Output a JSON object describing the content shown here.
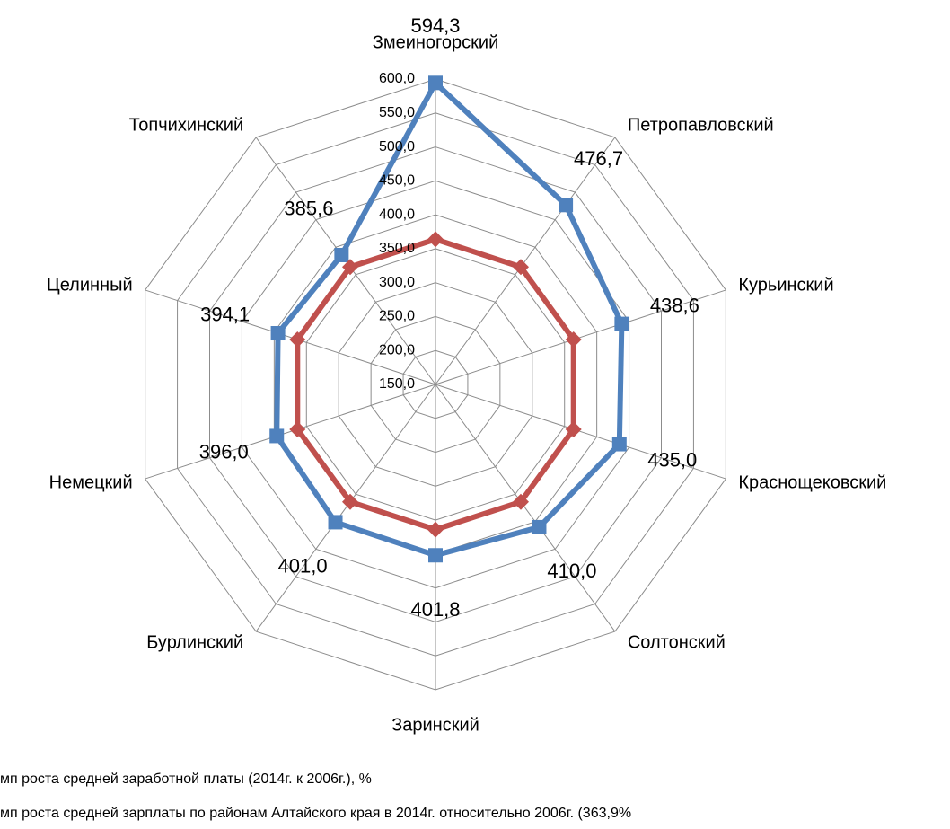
{
  "chart_data": {
    "type": "radar",
    "categories": [
      "Змеиногорский",
      "Петропавловский",
      "Курьинский",
      "Краснощековский",
      "Солтонский",
      "Заринский",
      "Бурлинский",
      "Немецкий",
      "Целинный",
      "Топчихинский"
    ],
    "series": [
      {
        "name": "мп роста средней заработной платы (2014г. к 2006г.), %",
        "color": "#4f81bd",
        "marker": "square",
        "values": [
          594.3,
          476.7,
          438.6,
          435.0,
          410.0,
          401.8,
          401.0,
          396.0,
          394.1,
          385.6
        ],
        "value_labels": [
          "594,3",
          "476,7",
          "438,6",
          "435,0",
          "410,0",
          "401,8",
          "401,0",
          "396,0",
          "394,1",
          "385,6"
        ]
      },
      {
        "name": "мп роста средней зарплаты по районам Алтайского края в 2014г. относительно 2006г. (363,9%",
        "color": "#c0504d",
        "marker": "diamond",
        "values": [
          363.9,
          363.9,
          363.9,
          363.9,
          363.9,
          363.9,
          363.9,
          363.9,
          363.9,
          363.9
        ]
      }
    ],
    "ylim": [
      150,
      600
    ],
    "yticks": [
      {
        "value": 150,
        "label": "150,0"
      },
      {
        "value": 200,
        "label": "200,0"
      },
      {
        "value": 250,
        "label": "250,0"
      },
      {
        "value": 300,
        "label": "300,0"
      },
      {
        "value": 350,
        "label": "350,0"
      },
      {
        "value": 400,
        "label": "400,0"
      },
      {
        "value": 450,
        "label": "450,0"
      },
      {
        "value": 500,
        "label": "500,0"
      },
      {
        "value": 550,
        "label": "550,0"
      },
      {
        "value": 600,
        "label": "600,0"
      }
    ],
    "grid": true
  }
}
